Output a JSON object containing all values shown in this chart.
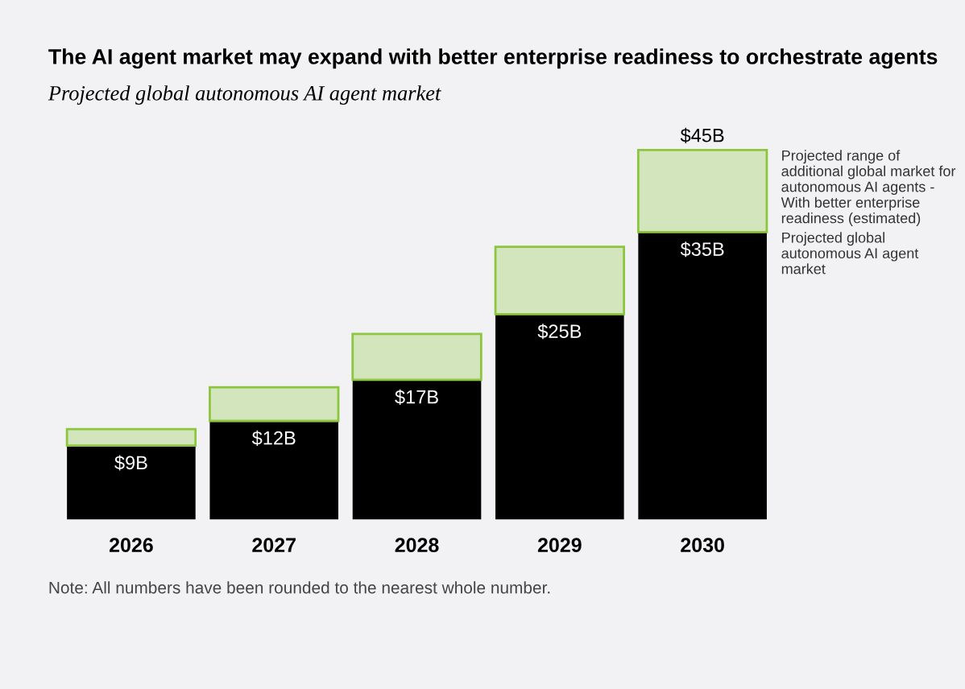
{
  "chart_data": {
    "type": "bar",
    "title": "The AI agent market may expand with better enterprise readiness to orchestrate agents",
    "subtitle": "Projected global autonomous AI agent market",
    "categories": [
      "2026",
      "2027",
      "2028",
      "2029",
      "2030"
    ],
    "stacked": true,
    "series": [
      {
        "name": "Projected global autonomous AI agent market",
        "color": "#000000",
        "values": [
          9,
          12,
          17,
          25,
          35
        ],
        "value_labels": [
          "$9B",
          "$12B",
          "$17B",
          "$25B",
          "$35B"
        ]
      },
      {
        "name": "Projected range of additional global market for autonomous AI agents - With better enterprise readiness (estimated)",
        "color": "#8cc63f",
        "values": [
          2.0,
          4.1,
          5.6,
          8.2,
          10
        ]
      }
    ],
    "totals": [
      null,
      null,
      null,
      null,
      "$45B"
    ],
    "legend": "right",
    "grid": false,
    "annotations": [
      "Note: All numbers have been rounded to the nearest whole number."
    ]
  }
}
